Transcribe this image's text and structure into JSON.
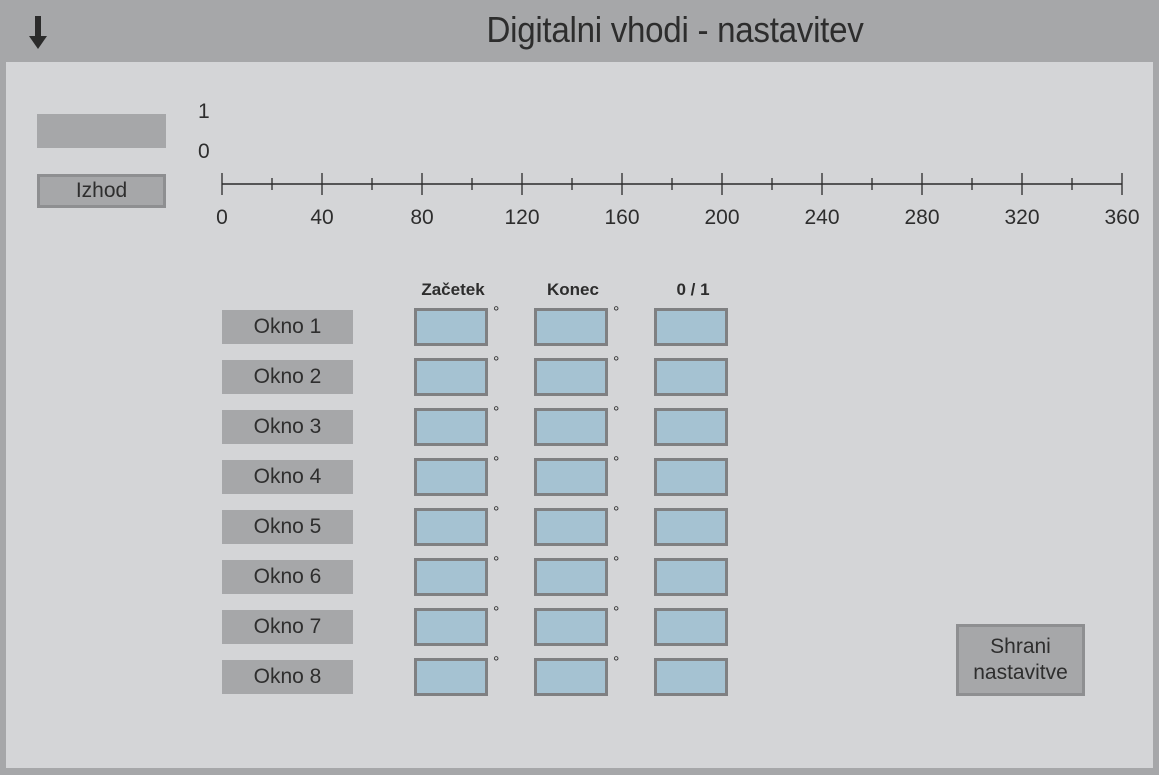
{
  "header": {
    "title": "Digitalni vhodi - nastavitev",
    "back_icon": "down-arrow-icon"
  },
  "signal": {
    "output_label": "Izhod",
    "y_axis_labels": [
      "1",
      "0"
    ]
  },
  "chart_data": {
    "type": "line",
    "x_ticks": [
      0,
      40,
      80,
      120,
      160,
      200,
      240,
      280,
      320,
      360
    ],
    "xlim": [
      0,
      360
    ],
    "y_ticks": [
      0,
      1
    ],
    "series": []
  },
  "table": {
    "columns": [
      "Začetek",
      "Konec",
      "0 / 1"
    ],
    "degree_symbol": "°",
    "rows": [
      {
        "label": "Okno 1",
        "start": "",
        "end": "",
        "state": ""
      },
      {
        "label": "Okno 2",
        "start": "",
        "end": "",
        "state": ""
      },
      {
        "label": "Okno 3",
        "start": "",
        "end": "",
        "state": ""
      },
      {
        "label": "Okno 4",
        "start": "",
        "end": "",
        "state": ""
      },
      {
        "label": "Okno 5",
        "start": "",
        "end": "",
        "state": ""
      },
      {
        "label": "Okno 6",
        "start": "",
        "end": "",
        "state": ""
      },
      {
        "label": "Okno 7",
        "start": "",
        "end": "",
        "state": ""
      },
      {
        "label": "Okno 8",
        "start": "",
        "end": "",
        "state": ""
      }
    ]
  },
  "save_button": {
    "line1": "Shrani",
    "line2": "nastavitve"
  },
  "colors": {
    "header_bg": "#a6a7a9",
    "panel_bg": "#d4d5d7",
    "field_bg": "#a5c2d2"
  }
}
